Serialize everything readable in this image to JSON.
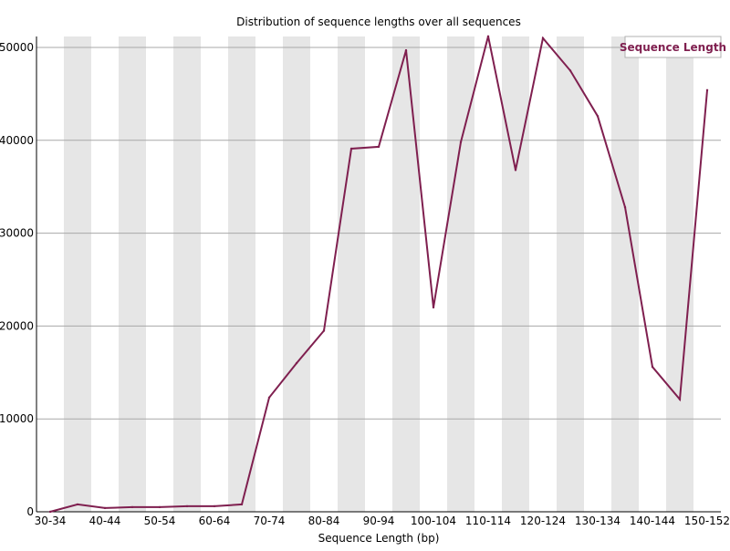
{
  "chart_data": {
    "type": "line",
    "title": "Distribution of sequence lengths over all sequences",
    "xlabel": "Sequence Length (bp)",
    "ylabel": "",
    "categories": [
      "30-34",
      "35-39",
      "40-44",
      "45-49",
      "50-54",
      "55-59",
      "60-64",
      "65-69",
      "70-74",
      "75-79",
      "80-84",
      "85-89",
      "90-94",
      "95-99",
      "100-104",
      "105-109",
      "110-114",
      "115-119",
      "120-124",
      "125-129",
      "130-134",
      "135-139",
      "140-144",
      "145-149",
      "150-152"
    ],
    "x_tick_labels": [
      "30-34",
      "",
      "40-44",
      "",
      "50-54",
      "",
      "60-64",
      "",
      "70-74",
      "",
      "80-84",
      "",
      "90-94",
      "",
      "100-104",
      "",
      "110-114",
      "",
      "120-124",
      "",
      "130-134",
      "",
      "140-144",
      "",
      "150-152"
    ],
    "y_ticks": [
      0,
      10000,
      20000,
      30000,
      40000,
      50000
    ],
    "ylim": [
      0,
      51000
    ],
    "series": [
      {
        "name": "Sequence Length",
        "color": "#7f1f4f",
        "values": [
          0,
          800,
          400,
          500,
          500,
          600,
          600,
          800,
          12300,
          16000,
          19500,
          39100,
          39300,
          49700,
          22000,
          39800,
          51200,
          36800,
          51000,
          47500,
          42600,
          32800,
          15600,
          12100,
          45400
        ]
      }
    ],
    "legend_position": "top-right",
    "grid": "horizontal",
    "band_colors": [
      "#ffffff",
      "#e6e6e6"
    ]
  }
}
